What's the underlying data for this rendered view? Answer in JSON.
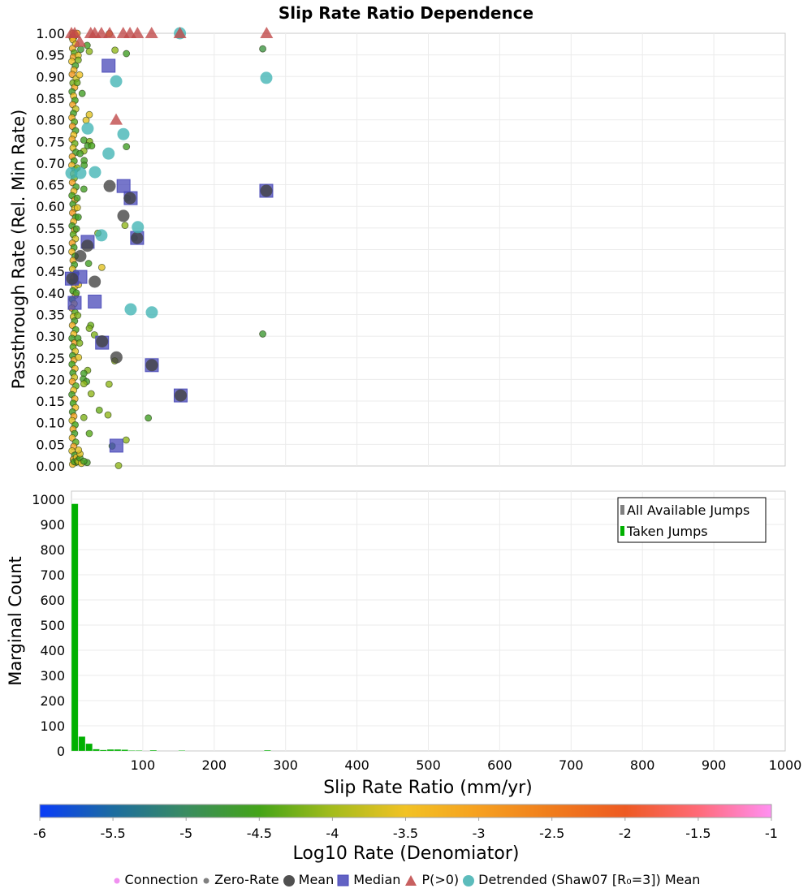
{
  "title": "Slip Rate Ratio Dependence",
  "colors": {
    "grid": "#ebebeb",
    "mean": "#404040",
    "median": "#4848b8",
    "p_gt_0": "#c04a4a",
    "detrended": "#40b4b4",
    "taken_jumps": "#00b000",
    "all_jumps": "#808080",
    "connection": "#f090f0",
    "zero_rate": "#808080"
  },
  "chart_data": [
    {
      "type": "scatter",
      "title": "Slip Rate Ratio Dependence",
      "xlabel": "Slip Rate Ratio (mm/yr)",
      "ylabel": "Passthrough Rate (Rel. Min Rate)",
      "xlim": [
        0,
        1000
      ],
      "ylim": [
        0,
        1
      ],
      "grid": true,
      "yticks": [
        "0.00",
        "0.05",
        "0.10",
        "0.15",
        "0.20",
        "0.25",
        "0.30",
        "0.35",
        "0.40",
        "0.45",
        "0.50",
        "0.55",
        "0.60",
        "0.65",
        "0.70",
        "0.75",
        "0.80",
        "0.85",
        "0.90",
        "0.95",
        "1.00"
      ],
      "xticks": [
        0,
        100,
        200,
        300,
        400,
        500,
        600,
        700,
        800,
        900,
        1000
      ],
      "point_format": [
        "slip_rate_ratio",
        "passthrough_rate",
        "log10_rate"
      ],
      "points": [
        [
          1,
          0.99,
          -2.8
        ],
        [
          3,
          0.99,
          -2.8
        ],
        [
          5,
          0.995,
          -2.9
        ],
        [
          2,
          0.985,
          -3.4
        ],
        [
          6,
          0.975,
          -3.6
        ],
        [
          1.5,
          0.965,
          -3.2
        ],
        [
          4,
          0.955,
          -4.4
        ],
        [
          2.5,
          0.945,
          -3.0
        ],
        [
          0.5,
          0.935,
          -3.5
        ],
        [
          5.5,
          0.925,
          -4.6
        ],
        [
          3.5,
          0.915,
          -3.3
        ],
        [
          1,
          0.905,
          -2.9
        ],
        [
          6.5,
          0.895,
          -3.7
        ],
        [
          2,
          0.885,
          -4.2
        ],
        [
          4.5,
          0.875,
          -3.1
        ],
        [
          0.8,
          0.865,
          -4.6
        ],
        [
          3,
          0.855,
          -3.4
        ],
        [
          5,
          0.845,
          -4.5
        ],
        [
          1.8,
          0.835,
          -3.0
        ],
        [
          6,
          0.825,
          -3.8
        ],
        [
          2.8,
          0.815,
          -4.6
        ],
        [
          0.6,
          0.805,
          -3.2
        ],
        [
          4.2,
          0.795,
          -4.4
        ],
        [
          1.4,
          0.785,
          -2.9
        ],
        [
          5.8,
          0.775,
          -4.6
        ],
        [
          3.2,
          0.765,
          -3.5
        ],
        [
          0.9,
          0.755,
          -3.1
        ],
        [
          4.8,
          0.745,
          -4.3
        ],
        [
          2.2,
          0.735,
          -3.6
        ],
        [
          6.2,
          0.725,
          -4.6
        ],
        [
          1.1,
          0.715,
          -3.0
        ],
        [
          3.8,
          0.705,
          -4.5
        ],
        [
          0.5,
          0.695,
          -3.3
        ],
        [
          5.2,
          0.685,
          -4.6
        ],
        [
          2.6,
          0.675,
          -3.7
        ],
        [
          4,
          0.665,
          -4.2
        ],
        [
          1.3,
          0.655,
          -3.0
        ],
        [
          6.4,
          0.645,
          -4.6
        ],
        [
          3.4,
          0.635,
          -3.4
        ],
        [
          0.7,
          0.625,
          -4.5
        ],
        [
          5,
          0.615,
          -3.2
        ],
        [
          2,
          0.605,
          -4.6
        ],
        [
          4.6,
          0.595,
          -3.6
        ],
        [
          1.6,
          0.585,
          -2.9
        ],
        [
          6,
          0.575,
          -4.5
        ],
        [
          3,
          0.565,
          -3.3
        ],
        [
          0.8,
          0.555,
          -4.6
        ],
        [
          4.4,
          0.545,
          -3.1
        ],
        [
          2.4,
          0.535,
          -4.4
        ],
        [
          5.6,
          0.525,
          -3.7
        ],
        [
          1.2,
          0.515,
          -3.0
        ],
        [
          3.6,
          0.505,
          -4.6
        ],
        [
          0.6,
          0.495,
          -3.4
        ],
        [
          5.2,
          0.485,
          -4.5
        ],
        [
          2.2,
          0.475,
          -3.2
        ],
        [
          4.2,
          0.465,
          -4.6
        ],
        [
          1.4,
          0.455,
          -3.6
        ],
        [
          6.2,
          0.445,
          -4.3
        ],
        [
          3,
          0.435,
          -3.0
        ],
        [
          0.9,
          0.425,
          -4.6
        ],
        [
          4.8,
          0.415,
          -3.4
        ],
        [
          2,
          0.405,
          -4.5
        ],
        [
          5.8,
          0.395,
          -3.1
        ],
        [
          1.1,
          0.385,
          -4.6
        ],
        [
          3.8,
          0.375,
          -3.5
        ],
        [
          0.5,
          0.365,
          -3.0
        ],
        [
          5,
          0.355,
          -4.4
        ],
        [
          2.6,
          0.345,
          -3.7
        ],
        [
          4.4,
          0.335,
          -4.6
        ],
        [
          1.3,
          0.325,
          -3.2
        ],
        [
          6,
          0.315,
          -4.5
        ],
        [
          3.2,
          0.305,
          -3.4
        ],
        [
          0.7,
          0.295,
          -4.6
        ],
        [
          4.6,
          0.285,
          -3.0
        ],
        [
          2.2,
          0.275,
          -4.4
        ],
        [
          5.4,
          0.265,
          -3.6
        ],
        [
          1.6,
          0.255,
          -4.6
        ],
        [
          3.6,
          0.245,
          -3.1
        ],
        [
          0.8,
          0.235,
          -4.5
        ],
        [
          5,
          0.225,
          -3.3
        ],
        [
          2,
          0.215,
          -4.6
        ],
        [
          4.2,
          0.205,
          -3.7
        ],
        [
          1.2,
          0.195,
          -3.0
        ],
        [
          6.2,
          0.185,
          -4.4
        ],
        [
          3,
          0.175,
          -3.5
        ],
        [
          0.6,
          0.165,
          -4.6
        ],
        [
          4.8,
          0.155,
          -3.2
        ],
        [
          2.4,
          0.145,
          -4.5
        ],
        [
          5.6,
          0.135,
          -3.4
        ],
        [
          1.4,
          0.125,
          -4.6
        ],
        [
          3.4,
          0.115,
          -3.0
        ],
        [
          0.9,
          0.105,
          -3.6
        ],
        [
          5.2,
          0.095,
          -4.5
        ],
        [
          2.2,
          0.085,
          -3.1
        ],
        [
          4.4,
          0.075,
          -4.6
        ],
        [
          1.1,
          0.065,
          -3.3
        ],
        [
          6,
          0.055,
          -4.4
        ],
        [
          3.2,
          0.045,
          -3.0
        ],
        [
          0.7,
          0.035,
          -3.6
        ],
        [
          4.6,
          0.025,
          -4.6
        ],
        [
          2.6,
          0.015,
          -3.2
        ],
        [
          5.8,
          0.008,
          -4.5
        ],
        [
          1.5,
          0.004,
          -3.4
        ],
        [
          3.8,
          0.01,
          -4.6
        ],
        [
          7,
          0.02,
          -3.5
        ],
        [
          8,
          0.012,
          -4.4
        ],
        [
          10,
          0.01,
          -3.8
        ],
        [
          12,
          0.018,
          -4.6
        ],
        [
          14,
          0.006,
          -3.6
        ],
        [
          22,
          0.972,
          -4.6
        ],
        [
          13,
          0.963,
          -4.7
        ],
        [
          25,
          0.958,
          -4.1
        ],
        [
          61,
          0.961,
          -4.1
        ],
        [
          77,
          0.953,
          -4.6
        ],
        [
          268,
          0.964,
          -4.8
        ],
        [
          9.5,
          0.949,
          -3.6
        ],
        [
          9.5,
          0.938,
          -4.2
        ],
        [
          11.4,
          0.904,
          -3.5
        ],
        [
          8,
          0.886,
          -4.3
        ],
        [
          15,
          0.861,
          -4.6
        ],
        [
          25,
          0.812,
          -3.6
        ],
        [
          20.5,
          0.799,
          -3.6
        ],
        [
          17.4,
          0.753,
          -4.6
        ],
        [
          25.4,
          0.75,
          -4.2
        ],
        [
          22.7,
          0.74,
          -4.6
        ],
        [
          28.4,
          0.74,
          -4.5
        ],
        [
          77,
          0.738,
          -4.6
        ],
        [
          17.4,
          0.728,
          -4.1
        ],
        [
          12,
          0.722,
          -4.6
        ],
        [
          17.8,
          0.706,
          -4.6
        ],
        [
          17.8,
          0.695,
          -4.6
        ],
        [
          8,
          0.689,
          -4.2
        ],
        [
          17.4,
          0.64,
          -4.6
        ],
        [
          8,
          0.619,
          -4.6
        ],
        [
          78,
          0.619,
          -4.6
        ],
        [
          8.3,
          0.597,
          -3.6
        ],
        [
          9.5,
          0.575,
          -4.6
        ],
        [
          75,
          0.556,
          -4.1
        ],
        [
          7,
          0.548,
          -4.6
        ],
        [
          37,
          0.538,
          -4.1
        ],
        [
          88,
          0.527,
          -4.6
        ],
        [
          24,
          0.468,
          -4.6
        ],
        [
          42.5,
          0.459,
          -3.6
        ],
        [
          9.9,
          0.419,
          -3.6
        ],
        [
          6.8,
          0.4,
          -4.6
        ],
        [
          8.8,
          0.348,
          -4.2
        ],
        [
          27,
          0.325,
          -4.3
        ],
        [
          25,
          0.318,
          -4.2
        ],
        [
          32.2,
          0.303,
          -4.2
        ],
        [
          268,
          0.305,
          -4.7
        ],
        [
          9.1,
          0.295,
          -4.6
        ],
        [
          11.4,
          0.284,
          -4.2
        ],
        [
          9.9,
          0.251,
          -3.6
        ],
        [
          60.6,
          0.243,
          -4.1
        ],
        [
          22.7,
          0.221,
          -4.2
        ],
        [
          17.4,
          0.214,
          -4.6
        ],
        [
          16.6,
          0.201,
          -4.6
        ],
        [
          21.2,
          0.195,
          -4.6
        ],
        [
          17.4,
          0.19,
          -4.1
        ],
        [
          52.7,
          0.189,
          -4.1
        ],
        [
          27.6,
          0.167,
          -4.1
        ],
        [
          39,
          0.129,
          -4.3
        ],
        [
          51.2,
          0.118,
          -4.1
        ],
        [
          17.4,
          0.112,
          -4.2
        ],
        [
          107.7,
          0.111,
          -4.6
        ],
        [
          25,
          0.075,
          -4.4
        ],
        [
          76.6,
          0.06,
          -4.1
        ],
        [
          57,
          0.046,
          -4.6
        ],
        [
          12,
          0.028,
          -3.6
        ],
        [
          9.9,
          0.037,
          -3.6
        ],
        [
          66,
          0.001,
          -4.1
        ],
        [
          22,
          0.008,
          -4.6
        ],
        [
          17.4,
          0.011,
          -4.6
        ],
        [
          53,
          0.999,
          -2.9
        ],
        [
          2,
          1.0,
          -2.7
        ],
        [
          8,
          1.0,
          -2.8
        ]
      ],
      "mean": [
        [
          53.5,
          0.647
        ],
        [
          72.8,
          0.578
        ],
        [
          82,
          0.619
        ],
        [
          92,
          0.527
        ],
        [
          273,
          0.636
        ],
        [
          12.5,
          0.485
        ],
        [
          32.6,
          0.426
        ],
        [
          22.4,
          0.509
        ],
        [
          42.9,
          0.288
        ],
        [
          63,
          0.251
        ],
        [
          112.6,
          0.233
        ],
        [
          153,
          0.163
        ],
        [
          1,
          0.433
        ]
      ],
      "median": [
        [
          52,
          0.925
        ],
        [
          73,
          0.647
        ],
        [
          83,
          0.619
        ],
        [
          92,
          0.527
        ],
        [
          273,
          0.636
        ],
        [
          22.7,
          0.518
        ],
        [
          12.5,
          0.437
        ],
        [
          4.5,
          0.377
        ],
        [
          32.6,
          0.38
        ],
        [
          42.9,
          0.285
        ],
        [
          112.6,
          0.233
        ],
        [
          153,
          0.163
        ],
        [
          63,
          0.047
        ],
        [
          0.5,
          0.433
        ]
      ],
      "p_gt_0": [
        [
          0,
          1.0
        ],
        [
          4.5,
          1.0
        ],
        [
          11.7,
          0.98
        ],
        [
          27,
          1.0
        ],
        [
          32.6,
          1.0
        ],
        [
          42,
          1.0
        ],
        [
          53.5,
          1.0
        ],
        [
          72.5,
          1.0
        ],
        [
          82,
          1.0
        ],
        [
          92.5,
          1.0
        ],
        [
          112.3,
          1.0
        ],
        [
          152,
          1.0
        ],
        [
          273.4,
          1.0
        ],
        [
          62.6,
          0.8
        ]
      ],
      "detrended_mean": [
        [
          62.6,
          0.889
        ],
        [
          273,
          0.897
        ],
        [
          22.7,
          0.78
        ],
        [
          72.8,
          0.767
        ],
        [
          52,
          0.722
        ],
        [
          33,
          0.679
        ],
        [
          12.5,
          0.677
        ],
        [
          0,
          0.677
        ],
        [
          93,
          0.552
        ],
        [
          42,
          0.533
        ],
        [
          83,
          0.362
        ],
        [
          112.6,
          0.355
        ],
        [
          152,
          1.0
        ]
      ]
    },
    {
      "type": "bar",
      "xlabel": "Slip Rate Ratio (mm/yr)",
      "ylabel": "Marginal Count",
      "xlim": [
        0,
        1000
      ],
      "ylim": [
        0,
        1030
      ],
      "grid": true,
      "bin_width": 10,
      "xticks": [
        "100",
        "200",
        "300",
        "400",
        "500",
        "600",
        "700",
        "800",
        "900",
        "1000"
      ],
      "yticks": [
        "0",
        "100",
        "200",
        "300",
        "400",
        "500",
        "600",
        "700",
        "800",
        "900",
        "1000"
      ],
      "legend_position": "top-right",
      "bin_starts": [
        0,
        10,
        20,
        30,
        40,
        50,
        60,
        70,
        80,
        90,
        110,
        150,
        270
      ],
      "series": [
        {
          "name": "All Available Jumps",
          "values": [
            982,
            57,
            29,
            7,
            4,
            6,
            6,
            5,
            2,
            2,
            3,
            2,
            3
          ]
        },
        {
          "name": "Taken Jumps",
          "values": [
            982,
            57,
            29,
            7,
            4,
            6,
            6,
            5,
            2,
            2,
            3,
            2,
            3
          ]
        }
      ]
    }
  ],
  "colorbar": {
    "label": "Log10 Rate (Denomiator)",
    "range": [
      -6,
      -1
    ],
    "ticks": [
      "-6",
      "-5.5",
      "-5",
      "-4.5",
      "-4",
      "-3.5",
      "-3",
      "-2.5",
      "-2",
      "-1.5",
      "-1"
    ],
    "stops": [
      {
        "value": -6,
        "color": "#0a3cf8"
      },
      {
        "value": -5.5,
        "color": "#1c6ca0"
      },
      {
        "value": -5,
        "color": "#3a8c60"
      },
      {
        "value": -4.5,
        "color": "#44a418"
      },
      {
        "value": -4,
        "color": "#a4bc1c"
      },
      {
        "value": -3.5,
        "color": "#f2c224"
      },
      {
        "value": -3,
        "color": "#f6a020"
      },
      {
        "value": -2.5,
        "color": "#f07c1c"
      },
      {
        "value": -2,
        "color": "#ee5a22"
      },
      {
        "value": -1.5,
        "color": "#ff6a78"
      },
      {
        "value": -1,
        "color": "#ff90f2"
      }
    ]
  },
  "legend": {
    "items": [
      {
        "label": "Connection",
        "icon": "small-pink-dot"
      },
      {
        "label": "Zero-Rate",
        "icon": "small-gray-dot"
      },
      {
        "label": "Mean",
        "icon": "gray-circle"
      },
      {
        "label": "Median",
        "icon": "blue-square"
      },
      {
        "label": "P(>0)",
        "icon": "red-triangle"
      },
      {
        "label": "Detrended (Shaw07 [R₀=3]) Mean",
        "icon": "teal-circle"
      }
    ]
  }
}
